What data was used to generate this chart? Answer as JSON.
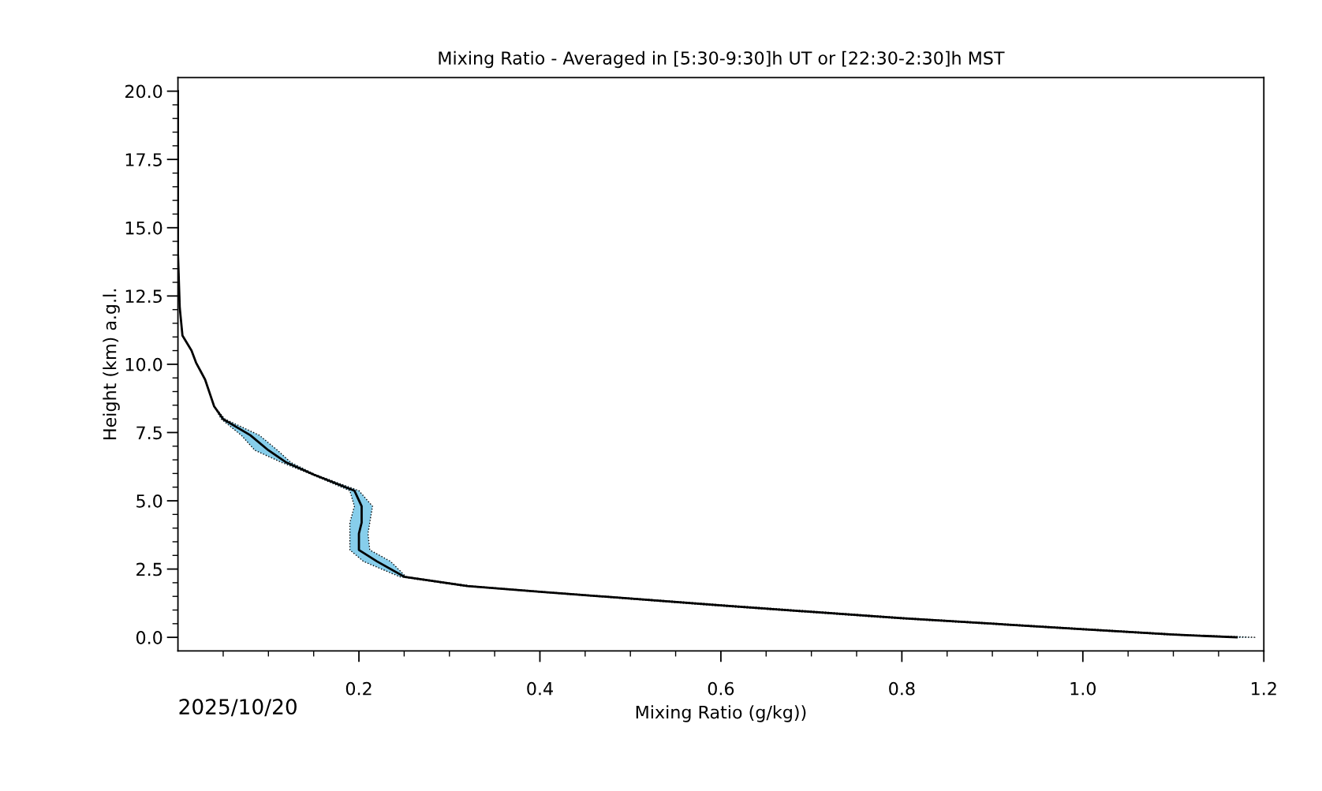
{
  "chart_data": {
    "type": "line",
    "orientation": "horizontal",
    "title": "Mixing Ratio - Averaged in [5:30-9:30]h UT or [22:30-2:30]h MST",
    "xlabel": "Mixing Ratio (g/kg))",
    "ylabel": "Height (km) a.g.l.",
    "annotations": [
      "2025/10/20"
    ],
    "series": [
      {
        "color": "#000000",
        "values": [
          1.17,
          1.1,
          1.0,
          0.8,
          0.6,
          0.4,
          0.32,
          0.25,
          0.22,
          0.2,
          0.2,
          0.203,
          0.203,
          0.195,
          0.15,
          0.12,
          0.1,
          0.08,
          0.05,
          0.04,
          0.03,
          0.02,
          0.015,
          0.005,
          0.002,
          0,
          0
        ],
        "x": [
          0,
          0.1,
          0.3,
          0.7,
          1.17,
          1.67,
          1.88,
          2.22,
          2.78,
          3.2,
          3.8,
          4.2,
          4.8,
          5.37,
          5.96,
          6.4,
          6.85,
          7.4,
          7.99,
          8.46,
          9.44,
          10.06,
          10.5,
          11.05,
          12.07,
          14.07,
          20
        ],
        "lower": [
          1.17,
          1.09,
          0.99,
          0.79,
          0.59,
          0.395,
          0.315,
          0.245,
          0.205,
          0.19,
          0.19,
          0.19,
          0.195,
          0.19,
          0.148,
          0.115,
          0.085,
          0.07,
          0.048,
          0.04,
          0.03,
          0.02,
          0.015,
          0.005,
          0.002,
          0,
          0
        ],
        "upper": [
          1.19,
          1.11,
          1.01,
          0.81,
          0.61,
          0.405,
          0.325,
          0.252,
          0.235,
          0.212,
          0.21,
          0.212,
          0.215,
          0.2,
          0.152,
          0.125,
          0.11,
          0.09,
          0.052,
          0.04,
          0.03,
          0.02,
          0.015,
          0.005,
          0.002,
          0,
          0
        ]
      }
    ],
    "xlim": [
      0,
      1.2
    ],
    "ylim": [
      -0.5,
      20.5
    ],
    "xticks": [
      {
        "value": 0.05,
        "label": null
      },
      {
        "value": 0.1,
        "label": null
      },
      {
        "value": 0.15,
        "label": null
      },
      {
        "value": 0.2,
        "label": "0.2"
      },
      {
        "value": 0.25,
        "label": null
      },
      {
        "value": 0.3,
        "label": null
      },
      {
        "value": 0.35,
        "label": null
      },
      {
        "value": 0.4,
        "label": "0.4"
      },
      {
        "value": 0.45,
        "label": null
      },
      {
        "value": 0.5,
        "label": null
      },
      {
        "value": 0.55,
        "label": null
      },
      {
        "value": 0.6,
        "label": "0.6"
      },
      {
        "value": 0.65,
        "label": null
      },
      {
        "value": 0.7,
        "label": null
      },
      {
        "value": 0.75,
        "label": null
      },
      {
        "value": 0.8,
        "label": "0.8"
      },
      {
        "value": 0.85,
        "label": null
      },
      {
        "value": 0.9,
        "label": null
      },
      {
        "value": 0.95,
        "label": null
      },
      {
        "value": 1.0,
        "label": "1.0"
      },
      {
        "value": 1.05,
        "label": null
      },
      {
        "value": 1.1,
        "label": null
      },
      {
        "value": 1.15,
        "label": null
      },
      {
        "value": 1.2,
        "label": "1.2"
      }
    ],
    "yticks": [
      {
        "value": 0,
        "label": "0.0"
      },
      {
        "value": 0.5,
        "label": null
      },
      {
        "value": 1,
        "label": null
      },
      {
        "value": 1.5,
        "label": null
      },
      {
        "value": 2,
        "label": null
      },
      {
        "value": 2.5,
        "label": "2.5"
      },
      {
        "value": 3,
        "label": null
      },
      {
        "value": 3.5,
        "label": null
      },
      {
        "value": 4,
        "label": null
      },
      {
        "value": 4.5,
        "label": null
      },
      {
        "value": 5,
        "label": "5.0"
      },
      {
        "value": 5.5,
        "label": null
      },
      {
        "value": 6,
        "label": null
      },
      {
        "value": 6.5,
        "label": null
      },
      {
        "value": 7,
        "label": null
      },
      {
        "value": 7.5,
        "label": "7.5"
      },
      {
        "value": 8,
        "label": null
      },
      {
        "value": 8.5,
        "label": null
      },
      {
        "value": 9,
        "label": null
      },
      {
        "value": 9.5,
        "label": null
      },
      {
        "value": 10,
        "label": "10.0"
      },
      {
        "value": 10.5,
        "label": null
      },
      {
        "value": 11,
        "label": null
      },
      {
        "value": 11.5,
        "label": null
      },
      {
        "value": 12,
        "label": null
      },
      {
        "value": 12.5,
        "label": "12.5"
      },
      {
        "value": 13,
        "label": null
      },
      {
        "value": 13.5,
        "label": null
      },
      {
        "value": 14,
        "label": null
      },
      {
        "value": 14.5,
        "label": null
      },
      {
        "value": 15,
        "label": "15.0"
      },
      {
        "value": 15.5,
        "label": null
      },
      {
        "value": 16,
        "label": null
      },
      {
        "value": 16.5,
        "label": null
      },
      {
        "value": 17,
        "label": null
      },
      {
        "value": 17.5,
        "label": "17.5"
      },
      {
        "value": 18,
        "label": null
      },
      {
        "value": 18.5,
        "label": null
      },
      {
        "value": 19,
        "label": null
      },
      {
        "value": 19.5,
        "label": null
      },
      {
        "value": 20,
        "label": "20.0"
      }
    ],
    "grid": false,
    "legend": false,
    "line_style": "solid"
  }
}
